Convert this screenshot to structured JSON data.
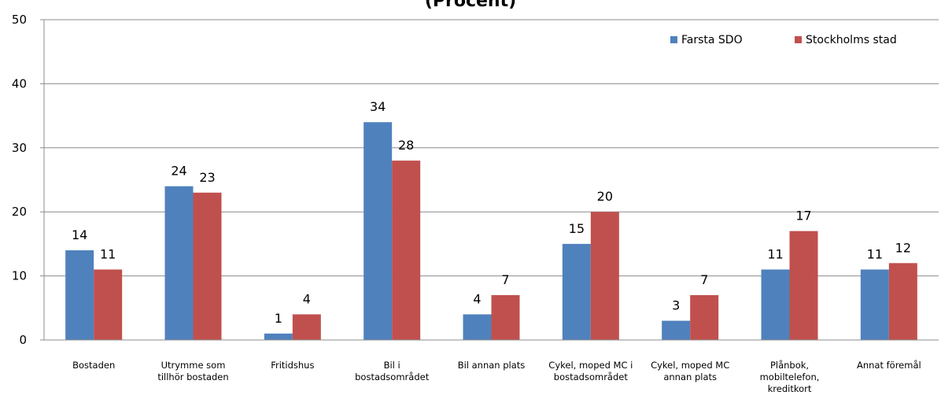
{
  "chart_data": {
    "type": "bar",
    "title": "(Procent)",
    "categories": [
      [
        "Bostaden"
      ],
      [
        "Utrymme som",
        "tillhör bostaden"
      ],
      [
        "Fritidshus"
      ],
      [
        "Bil i",
        "bostadsområdet"
      ],
      [
        "Bil annan plats"
      ],
      [
        "Cykel, moped MC i",
        "bostadsområdet"
      ],
      [
        "Cykel, moped MC",
        "annan plats"
      ],
      [
        "Plånbok,",
        "mobiltelefon,",
        "kreditkort"
      ],
      [
        "Annat föremål"
      ]
    ],
    "series": [
      {
        "name": "Farsta SDO",
        "color": "#4F81BD",
        "values": [
          14,
          24,
          1,
          34,
          4,
          15,
          3,
          11,
          11
        ]
      },
      {
        "name": "Stockholms stad",
        "color": "#C0504D",
        "values": [
          11,
          23,
          4,
          28,
          7,
          20,
          7,
          17,
          12
        ]
      }
    ],
    "ylim": [
      0,
      50
    ],
    "yticks": [
      0,
      10,
      20,
      30,
      40,
      50
    ],
    "grid": true,
    "legend_position": "top-right",
    "xlabel": "",
    "ylabel": ""
  }
}
